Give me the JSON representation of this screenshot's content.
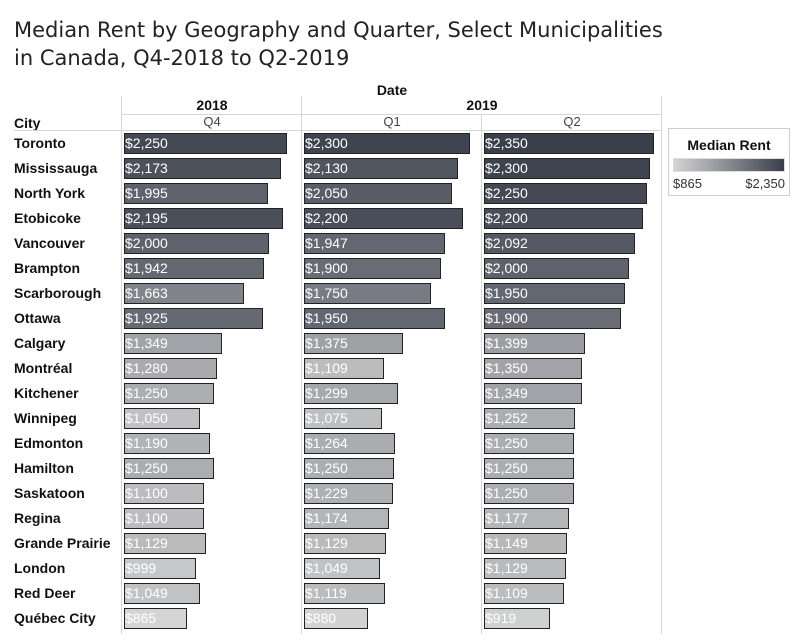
{
  "chart_data": {
    "type": "bar",
    "title": "Median Rent by Geography and Quarter, Select Municipalities in Canada, Q4-2018 to Q2-2019",
    "column_header": "Date",
    "row_header": "City",
    "years": [
      "2018",
      "2019"
    ],
    "quarters": [
      "Q4",
      "Q1",
      "Q2"
    ],
    "categories": [
      "Toronto",
      "Mississauga",
      "North York",
      "Etobicoke",
      "Vancouver",
      "Brampton",
      "Scarborough",
      "Ottawa",
      "Calgary",
      "Montréal",
      "Kitchener",
      "Winnipeg",
      "Edmonton",
      "Hamilton",
      "Saskatoon",
      "Regina",
      "Grande Prairie",
      "London",
      "Red Deer",
      "Québec City"
    ],
    "series": [
      {
        "name": "Q4",
        "values": [
          2250,
          2173,
          1995,
          2195,
          2000,
          1942,
          1663,
          1925,
          1349,
          1280,
          1250,
          1050,
          1190,
          1250,
          1100,
          1100,
          1129,
          999,
          1049,
          865
        ],
        "labels": [
          "$2,250",
          "$2,173",
          "$1,995",
          "$2,195",
          "$2,000",
          "$1,942",
          "$1,663",
          "$1,925",
          "$1,349",
          "$1,280",
          "$1,250",
          "$1,050",
          "$1,190",
          "$1,250",
          "$1,100",
          "$1,100",
          "$1,129",
          "$999",
          "$1,049",
          "$865"
        ]
      },
      {
        "name": "Q1",
        "values": [
          2300,
          2130,
          2050,
          2200,
          1947,
          1900,
          1750,
          1950,
          1375,
          1109,
          1299,
          1075,
          1264,
          1250,
          1229,
          1174,
          1129,
          1049,
          1119,
          880
        ],
        "labels": [
          "$2,300",
          "$2,130",
          "$2,050",
          "$2,200",
          "$1,947",
          "$1,900",
          "$1,750",
          "$1,950",
          "$1,375",
          "$1,109",
          "$1,299",
          "$1,075",
          "$1,264",
          "$1,250",
          "$1,229",
          "$1,174",
          "$1,129",
          "$1,049",
          "$1,119",
          "$880"
        ]
      },
      {
        "name": "Q2",
        "values": [
          2350,
          2300,
          2250,
          2200,
          2092,
          2000,
          1950,
          1900,
          1399,
          1350,
          1349,
          1252,
          1250,
          1250,
          1250,
          1177,
          1149,
          1129,
          1109,
          919
        ],
        "labels": [
          "$2,350",
          "$2,300",
          "$2,250",
          "$2,200",
          "$2,092",
          "$2,000",
          "$1,950",
          "$1,900",
          "$1,399",
          "$1,350",
          "$1,349",
          "$1,252",
          "$1,250",
          "$1,250",
          "$1,250",
          "$1,177",
          "$1,149",
          "$1,129",
          "$1,109",
          "$919"
        ]
      }
    ],
    "legend": {
      "title": "Median Rent",
      "min_label": "$865",
      "max_label": "$2,350",
      "min": 865,
      "max": 2350,
      "color_low": "#d4d4d4",
      "color_high": "#3a3f4c",
      "placement": "right"
    },
    "xlim": [
      0,
      2350
    ]
  }
}
